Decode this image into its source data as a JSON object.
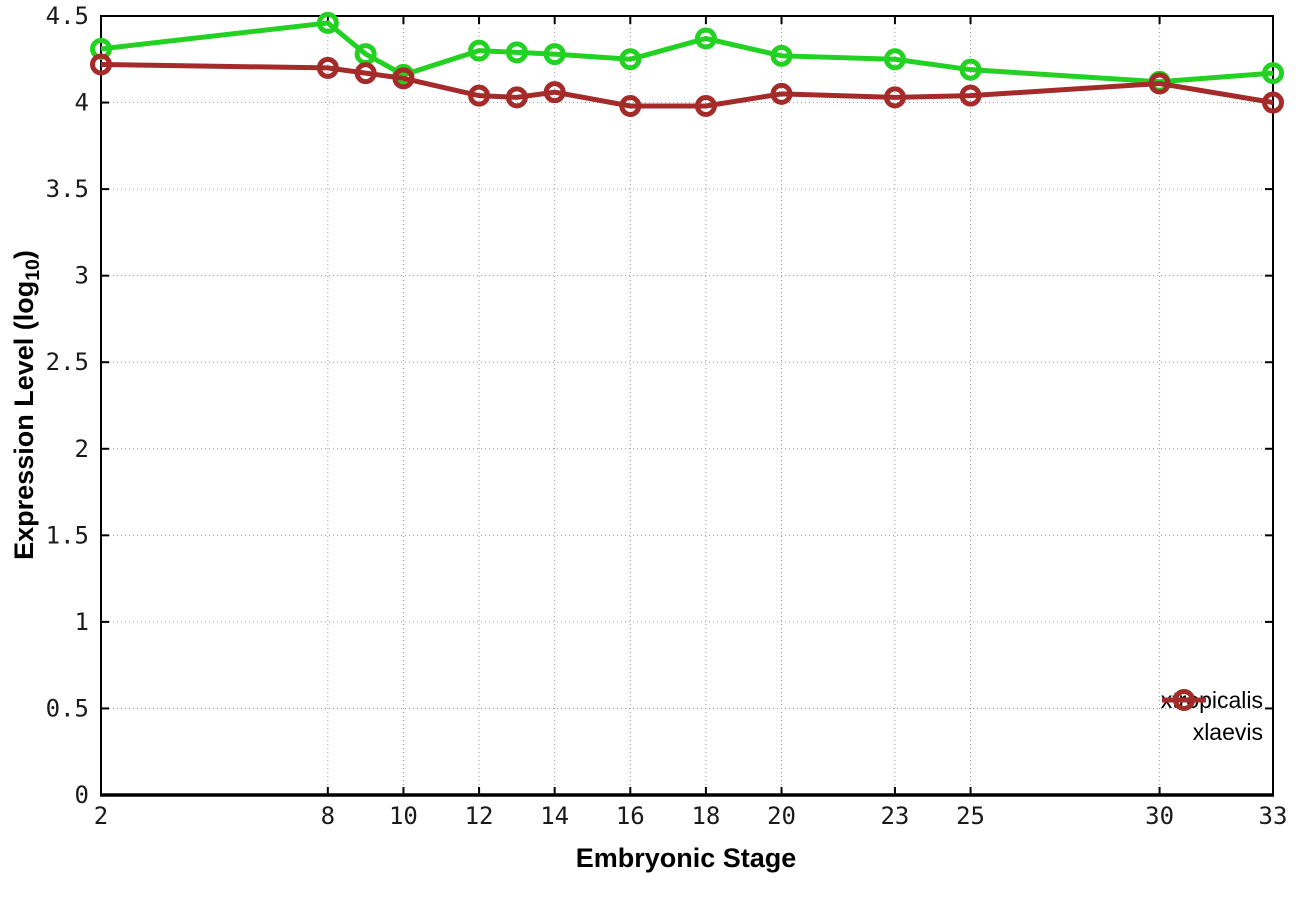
{
  "page": {
    "background": "#ffffff"
  },
  "chart_data": {
    "type": "line",
    "title": "",
    "xlabel": "Embryonic Stage",
    "ylabel": {
      "prefix": "Expression Level (log",
      "subscript": "10",
      "suffix": ")"
    },
    "x": [
      2,
      8,
      9,
      10,
      12,
      13,
      14,
      16,
      18,
      20,
      23,
      25,
      30,
      33
    ],
    "series": [
      {
        "name": "xtropicalis",
        "color": "#22d122",
        "values": [
          4.31,
          4.46,
          4.28,
          4.16,
          4.3,
          4.29,
          4.28,
          4.25,
          4.37,
          4.27,
          4.25,
          4.19,
          4.12,
          4.17
        ]
      },
      {
        "name": "xlaevis",
        "color": "#a52a2a",
        "values": [
          4.22,
          4.2,
          4.17,
          4.14,
          4.04,
          4.03,
          4.06,
          3.98,
          3.98,
          4.05,
          4.03,
          4.04,
          4.11,
          4.0
        ]
      }
    ],
    "xlim": [
      2,
      33
    ],
    "ylim": [
      0,
      4.5
    ],
    "xticks": [
      2,
      8,
      10,
      12,
      14,
      16,
      18,
      20,
      23,
      25,
      30,
      33
    ],
    "yticks": [
      0,
      0.5,
      1,
      1.5,
      2,
      2.5,
      3,
      3.5,
      4,
      4.5
    ],
    "grid": true,
    "legend_position": "inside-bottom-right",
    "colors": {
      "grid": "#9a9a9a",
      "border": "#000000",
      "tick_label": "#1a1a1a"
    }
  }
}
